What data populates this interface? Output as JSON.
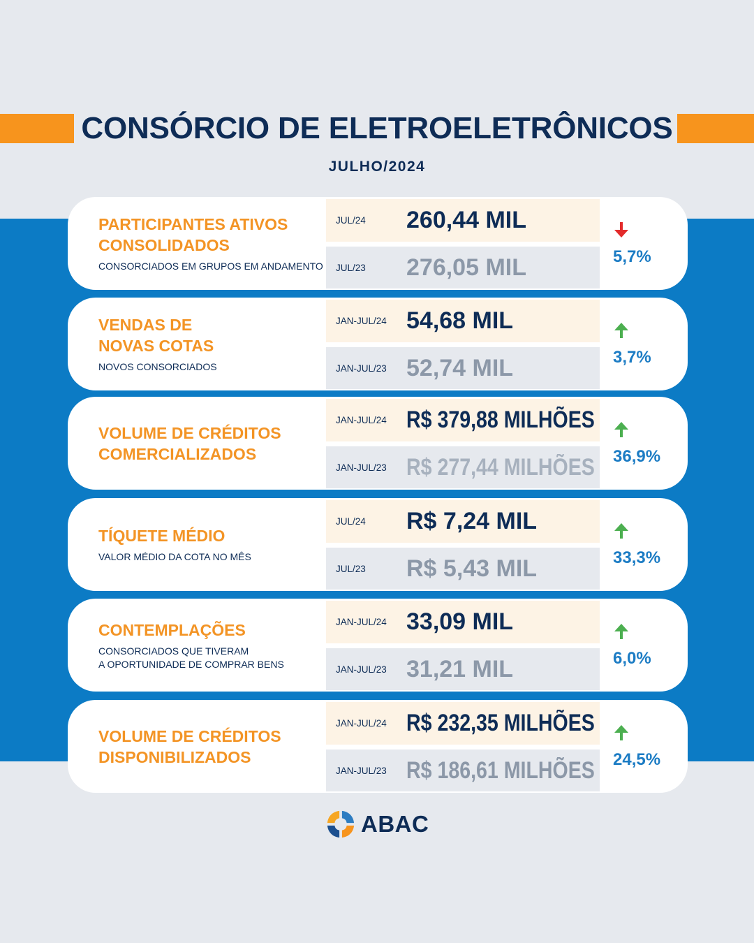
{
  "header": {
    "title": "CONSÓRCIO DE ELETROELETRÔNICOS",
    "subtitle": "JULHO/2024"
  },
  "metrics": [
    {
      "title": [
        "PARTICIPANTES ATIVOS",
        "CONSOLIDADOS"
      ],
      "description": [
        "CONSORCIADOS EM GRUPOS EM ANDAMENTO"
      ],
      "current": {
        "period": "JUL/24",
        "value": "260,44 MIL"
      },
      "previous": {
        "period": "JUL/23",
        "value": "276,05 MIL"
      },
      "change": {
        "icon": "arrow-down-icon",
        "value": "5,7%"
      }
    },
    {
      "title": [
        "VENDAS DE",
        "NOVAS COTAS"
      ],
      "description": [
        "NOVOS CONSORCIADOS"
      ],
      "current": {
        "period": "JAN-JUL/24",
        "value": "54,68 MIL"
      },
      "previous": {
        "period": "JAN-JUL/23",
        "value": "52,74 MIL"
      },
      "change": {
        "icon": "arrow-up-icon",
        "value": "3,7%"
      }
    },
    {
      "title": [
        "VOLUME DE CRÉDITOS",
        "COMERCIALIZADOS"
      ],
      "current": {
        "period": "JAN-JUL/24",
        "value": "R$ 379,88 MILHÕES"
      },
      "previous": {
        "period": "JAN-JUL/23",
        "value": "R$ 277,44 MILHÕES"
      },
      "change": {
        "icon": "arrow-up-icon",
        "value": "36,9%"
      }
    },
    {
      "title": [
        "TÍQUETE MÉDIO"
      ],
      "description": [
        "VALOR MÉDIO DA COTA NO MÊS"
      ],
      "current": {
        "period": "JUL/24",
        "value": "R$ 7,24 MIL"
      },
      "previous": {
        "period": "JUL/23",
        "value": "R$ 5,43 MIL"
      },
      "change": {
        "icon": "arrow-up-icon",
        "value": "33,3%"
      }
    },
    {
      "title": [
        "CONTEMPLAÇÕES"
      ],
      "description": [
        "CONSORCIADOS QUE TIVERAM",
        "A OPORTUNIDADE DE COMPRAR BENS"
      ],
      "current": {
        "period": "JAN-JUL/24",
        "value": "33,09 MIL"
      },
      "previous": {
        "period": "JAN-JUL/23",
        "value": "31,21 MIL"
      },
      "change": {
        "icon": "arrow-up-icon",
        "value": "6,0%"
      }
    },
    {
      "title": [
        "VOLUME DE CRÉDITOS",
        "DISPONIBILIZADOS"
      ],
      "current": {
        "period": "JAN-JUL/24",
        "value": "R$ 232,35 MILHÕES"
      },
      "previous": {
        "period": "JAN-JUL/23",
        "value": "R$ 186,61 MILHÕES"
      },
      "change": {
        "icon": "arrow-up-icon",
        "value": "24,5%"
      }
    }
  ],
  "footer": {
    "logo_icon": "abac-logo-icon",
    "brand": "ABAC"
  },
  "colors": {
    "page_background": "#E6E9EE",
    "band_blue": "#0C7BC5",
    "accent_orange": "#F7941D",
    "heading_navy": "#0E2C56",
    "metric_title_orange": "#F39425",
    "current_row_background": "#FDF3E5",
    "previous_value_gray": "#8C98A8",
    "previous_value_light_gray": "#A7B1BE",
    "change_blue": "#1C7CC4",
    "increase_green": "#4CAF50",
    "decrease_red": "#E32B2B"
  }
}
